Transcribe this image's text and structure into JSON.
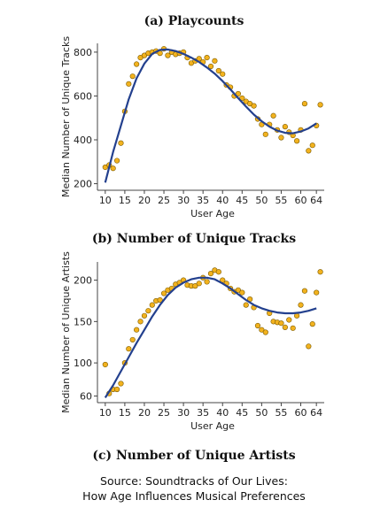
{
  "chart_data": [
    {
      "type": "scatter",
      "panel_caption": "(a) Playcounts",
      "xlabel": "User Age",
      "ylabel": "Median Number of Unique Tracks",
      "xlim": [
        8,
        66
      ],
      "ylim": [
        170,
        840
      ],
      "xticks": [
        10,
        15,
        20,
        25,
        30,
        35,
        40,
        45,
        50,
        55,
        60,
        64
      ],
      "yticks": [
        200,
        400,
        600,
        800
      ],
      "point_color": "#f2b21e",
      "curve_color": "#23408e",
      "points": [
        [
          10,
          275
        ],
        [
          11,
          285
        ],
        [
          12,
          270
        ],
        [
          13,
          305
        ],
        [
          14,
          385
        ],
        [
          15,
          530
        ],
        [
          16,
          655
        ],
        [
          17,
          690
        ],
        [
          18,
          745
        ],
        [
          19,
          775
        ],
        [
          20,
          785
        ],
        [
          21,
          795
        ],
        [
          22,
          800
        ],
        [
          23,
          805
        ],
        [
          24,
          795
        ],
        [
          25,
          815
        ],
        [
          26,
          785
        ],
        [
          27,
          800
        ],
        [
          28,
          790
        ],
        [
          29,
          795
        ],
        [
          30,
          800
        ],
        [
          31,
          775
        ],
        [
          32,
          750
        ],
        [
          33,
          760
        ],
        [
          34,
          770
        ],
        [
          35,
          755
        ],
        [
          36,
          775
        ],
        [
          37,
          735
        ],
        [
          38,
          760
        ],
        [
          39,
          715
        ],
        [
          40,
          700
        ],
        [
          41,
          650
        ],
        [
          42,
          640
        ],
        [
          43,
          600
        ],
        [
          44,
          610
        ],
        [
          45,
          590
        ],
        [
          46,
          575
        ],
        [
          47,
          565
        ],
        [
          48,
          555
        ],
        [
          49,
          495
        ],
        [
          50,
          470
        ],
        [
          51,
          425
        ],
        [
          52,
          470
        ],
        [
          53,
          510
        ],
        [
          54,
          445
        ],
        [
          55,
          410
        ],
        [
          56,
          460
        ],
        [
          57,
          435
        ],
        [
          58,
          420
        ],
        [
          59,
          395
        ],
        [
          60,
          445
        ],
        [
          61,
          565
        ],
        [
          62,
          350
        ],
        [
          63,
          375
        ],
        [
          64,
          465
        ],
        [
          65,
          560
        ]
      ],
      "fit_curve": [
        [
          10,
          205
        ],
        [
          12,
          345
        ],
        [
          14,
          465
        ],
        [
          16,
          585
        ],
        [
          18,
          680
        ],
        [
          20,
          748
        ],
        [
          22,
          792
        ],
        [
          24,
          810
        ],
        [
          26,
          812
        ],
        [
          28,
          805
        ],
        [
          30,
          792
        ],
        [
          32,
          775
        ],
        [
          34,
          755
        ],
        [
          36,
          730
        ],
        [
          38,
          702
        ],
        [
          40,
          668
        ],
        [
          42,
          630
        ],
        [
          44,
          590
        ],
        [
          46,
          552
        ],
        [
          48,
          515
        ],
        [
          50,
          485
        ],
        [
          52,
          460
        ],
        [
          54,
          442
        ],
        [
          56,
          432
        ],
        [
          58,
          430
        ],
        [
          60,
          438
        ],
        [
          62,
          452
        ],
        [
          64,
          475
        ]
      ]
    },
    {
      "type": "scatter",
      "panel_caption": "(b) Number of Unique Tracks",
      "xlabel": "User Age",
      "ylabel": "Median Number of Unique Artists",
      "xlim": [
        8,
        66
      ],
      "ylim": [
        52,
        222
      ],
      "xticks": [
        10,
        15,
        20,
        25,
        30,
        35,
        40,
        45,
        50,
        55,
        60,
        64
      ],
      "yticks": [
        60,
        100,
        150,
        200
      ],
      "point_color": "#f2b21e",
      "curve_color": "#23408e",
      "points": [
        [
          10,
          98
        ],
        [
          11,
          63
        ],
        [
          12,
          68
        ],
        [
          13,
          68
        ],
        [
          14,
          75
        ],
        [
          15,
          100
        ],
        [
          16,
          117
        ],
        [
          17,
          128
        ],
        [
          18,
          140
        ],
        [
          19,
          150
        ],
        [
          20,
          157
        ],
        [
          21,
          163
        ],
        [
          22,
          170
        ],
        [
          23,
          175
        ],
        [
          24,
          176
        ],
        [
          25,
          184
        ],
        [
          26,
          188
        ],
        [
          27,
          190
        ],
        [
          28,
          195
        ],
        [
          29,
          197
        ],
        [
          30,
          200
        ],
        [
          31,
          194
        ],
        [
          32,
          193
        ],
        [
          33,
          193
        ],
        [
          34,
          196
        ],
        [
          35,
          203
        ],
        [
          36,
          198
        ],
        [
          37,
          208
        ],
        [
          38,
          212
        ],
        [
          39,
          210
        ],
        [
          40,
          200
        ],
        [
          41,
          196
        ],
        [
          42,
          190
        ],
        [
          43,
          186
        ],
        [
          44,
          188
        ],
        [
          45,
          185
        ],
        [
          46,
          170
        ],
        [
          47,
          177
        ],
        [
          48,
          167
        ],
        [
          49,
          145
        ],
        [
          50,
          140
        ],
        [
          51,
          137
        ],
        [
          52,
          160
        ],
        [
          53,
          150
        ],
        [
          54,
          149
        ],
        [
          55,
          148
        ],
        [
          56,
          143
        ],
        [
          57,
          152
        ],
        [
          58,
          142
        ],
        [
          59,
          157
        ],
        [
          60,
          170
        ],
        [
          61,
          187
        ],
        [
          62,
          120
        ],
        [
          63,
          147
        ],
        [
          64,
          185
        ],
        [
          65,
          210
        ]
      ],
      "fit_curve": [
        [
          10,
          58
        ],
        [
          12,
          73
        ],
        [
          14,
          90
        ],
        [
          16,
          107
        ],
        [
          18,
          124
        ],
        [
          20,
          140
        ],
        [
          22,
          156
        ],
        [
          24,
          170
        ],
        [
          26,
          182
        ],
        [
          28,
          191
        ],
        [
          30,
          197
        ],
        [
          32,
          201
        ],
        [
          34,
          203
        ],
        [
          36,
          203
        ],
        [
          38,
          201
        ],
        [
          40,
          196
        ],
        [
          42,
          190
        ],
        [
          44,
          183
        ],
        [
          46,
          176
        ],
        [
          48,
          170
        ],
        [
          50,
          166
        ],
        [
          52,
          163
        ],
        [
          54,
          161
        ],
        [
          56,
          160
        ],
        [
          58,
          160
        ],
        [
          60,
          161
        ],
        [
          62,
          163
        ],
        [
          64,
          166
        ]
      ]
    }
  ],
  "captions": {
    "panel_a": "(a) Playcounts",
    "panel_b": "(b) Number of Unique Tracks",
    "panel_c": "(c) Number of Unique Artists"
  },
  "source": {
    "line1": "Source: Soundtracks of Our Lives:",
    "line2": "How Age Influences Musical Preferences"
  }
}
